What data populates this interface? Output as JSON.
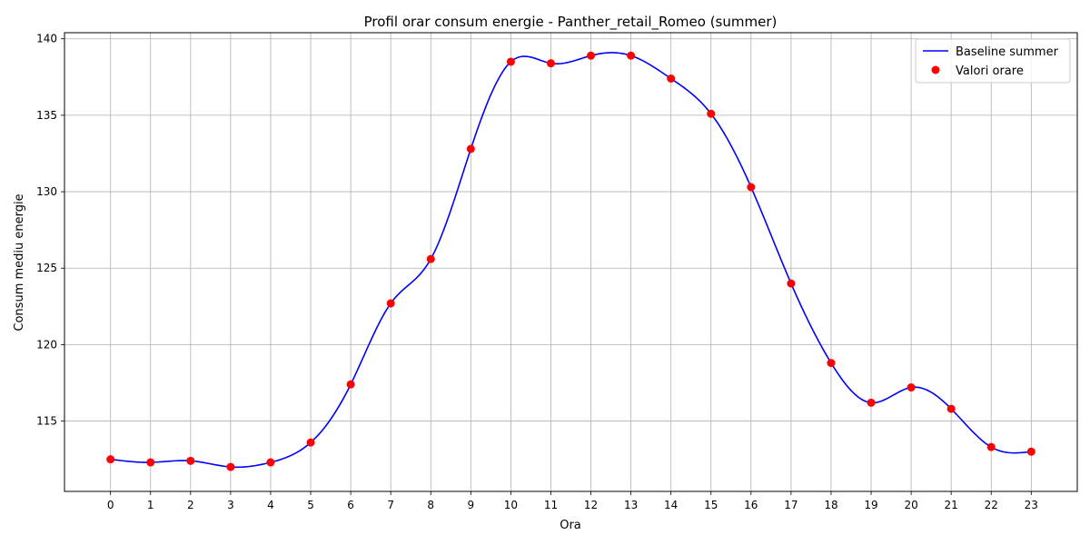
{
  "chart_data": {
    "type": "line",
    "title": "Profil orar consum energie - Panther_retail_Romeo (summer)",
    "xlabel": "Ora",
    "ylabel": "Consum mediu energie",
    "categories": [
      "0",
      "1",
      "2",
      "3",
      "4",
      "5",
      "6",
      "7",
      "8",
      "9",
      "10",
      "11",
      "12",
      "13",
      "14",
      "15",
      "16",
      "17",
      "18",
      "19",
      "20",
      "21",
      "22",
      "23"
    ],
    "xlim": [
      -1.15,
      24.15
    ],
    "ylim": [
      110.4,
      140.4
    ],
    "yticks": [
      115,
      120,
      125,
      130,
      135,
      140
    ],
    "grid": true,
    "legend_position": "top-right",
    "series": [
      {
        "name": "Baseline summer",
        "kind": "smooth-line",
        "color": "#0000ff",
        "x": [
          0,
          1,
          2,
          3,
          4,
          5,
          6,
          7,
          8,
          9,
          10,
          11,
          12,
          13,
          14,
          15,
          16,
          17,
          18,
          19,
          20,
          21,
          22,
          23
        ],
        "values": [
          112.5,
          112.3,
          112.4,
          112.0,
          112.3,
          113.6,
          117.4,
          122.7,
          125.6,
          132.8,
          138.5,
          138.4,
          138.9,
          138.9,
          137.4,
          135.1,
          130.3,
          124.0,
          118.8,
          116.2,
          117.2,
          115.8,
          113.3,
          113.0
        ]
      },
      {
        "name": "Valori orare",
        "kind": "scatter",
        "color": "#ff0000",
        "x": [
          0,
          1,
          2,
          3,
          4,
          5,
          6,
          7,
          8,
          9,
          10,
          11,
          12,
          13,
          14,
          15,
          16,
          17,
          18,
          19,
          20,
          21,
          22,
          23
        ],
        "values": [
          112.5,
          112.3,
          112.4,
          112.0,
          112.3,
          113.6,
          117.4,
          122.7,
          125.6,
          132.8,
          138.5,
          138.4,
          138.9,
          138.9,
          137.4,
          135.1,
          130.3,
          124.0,
          118.8,
          116.2,
          117.2,
          115.8,
          113.3,
          113.0
        ]
      }
    ]
  }
}
